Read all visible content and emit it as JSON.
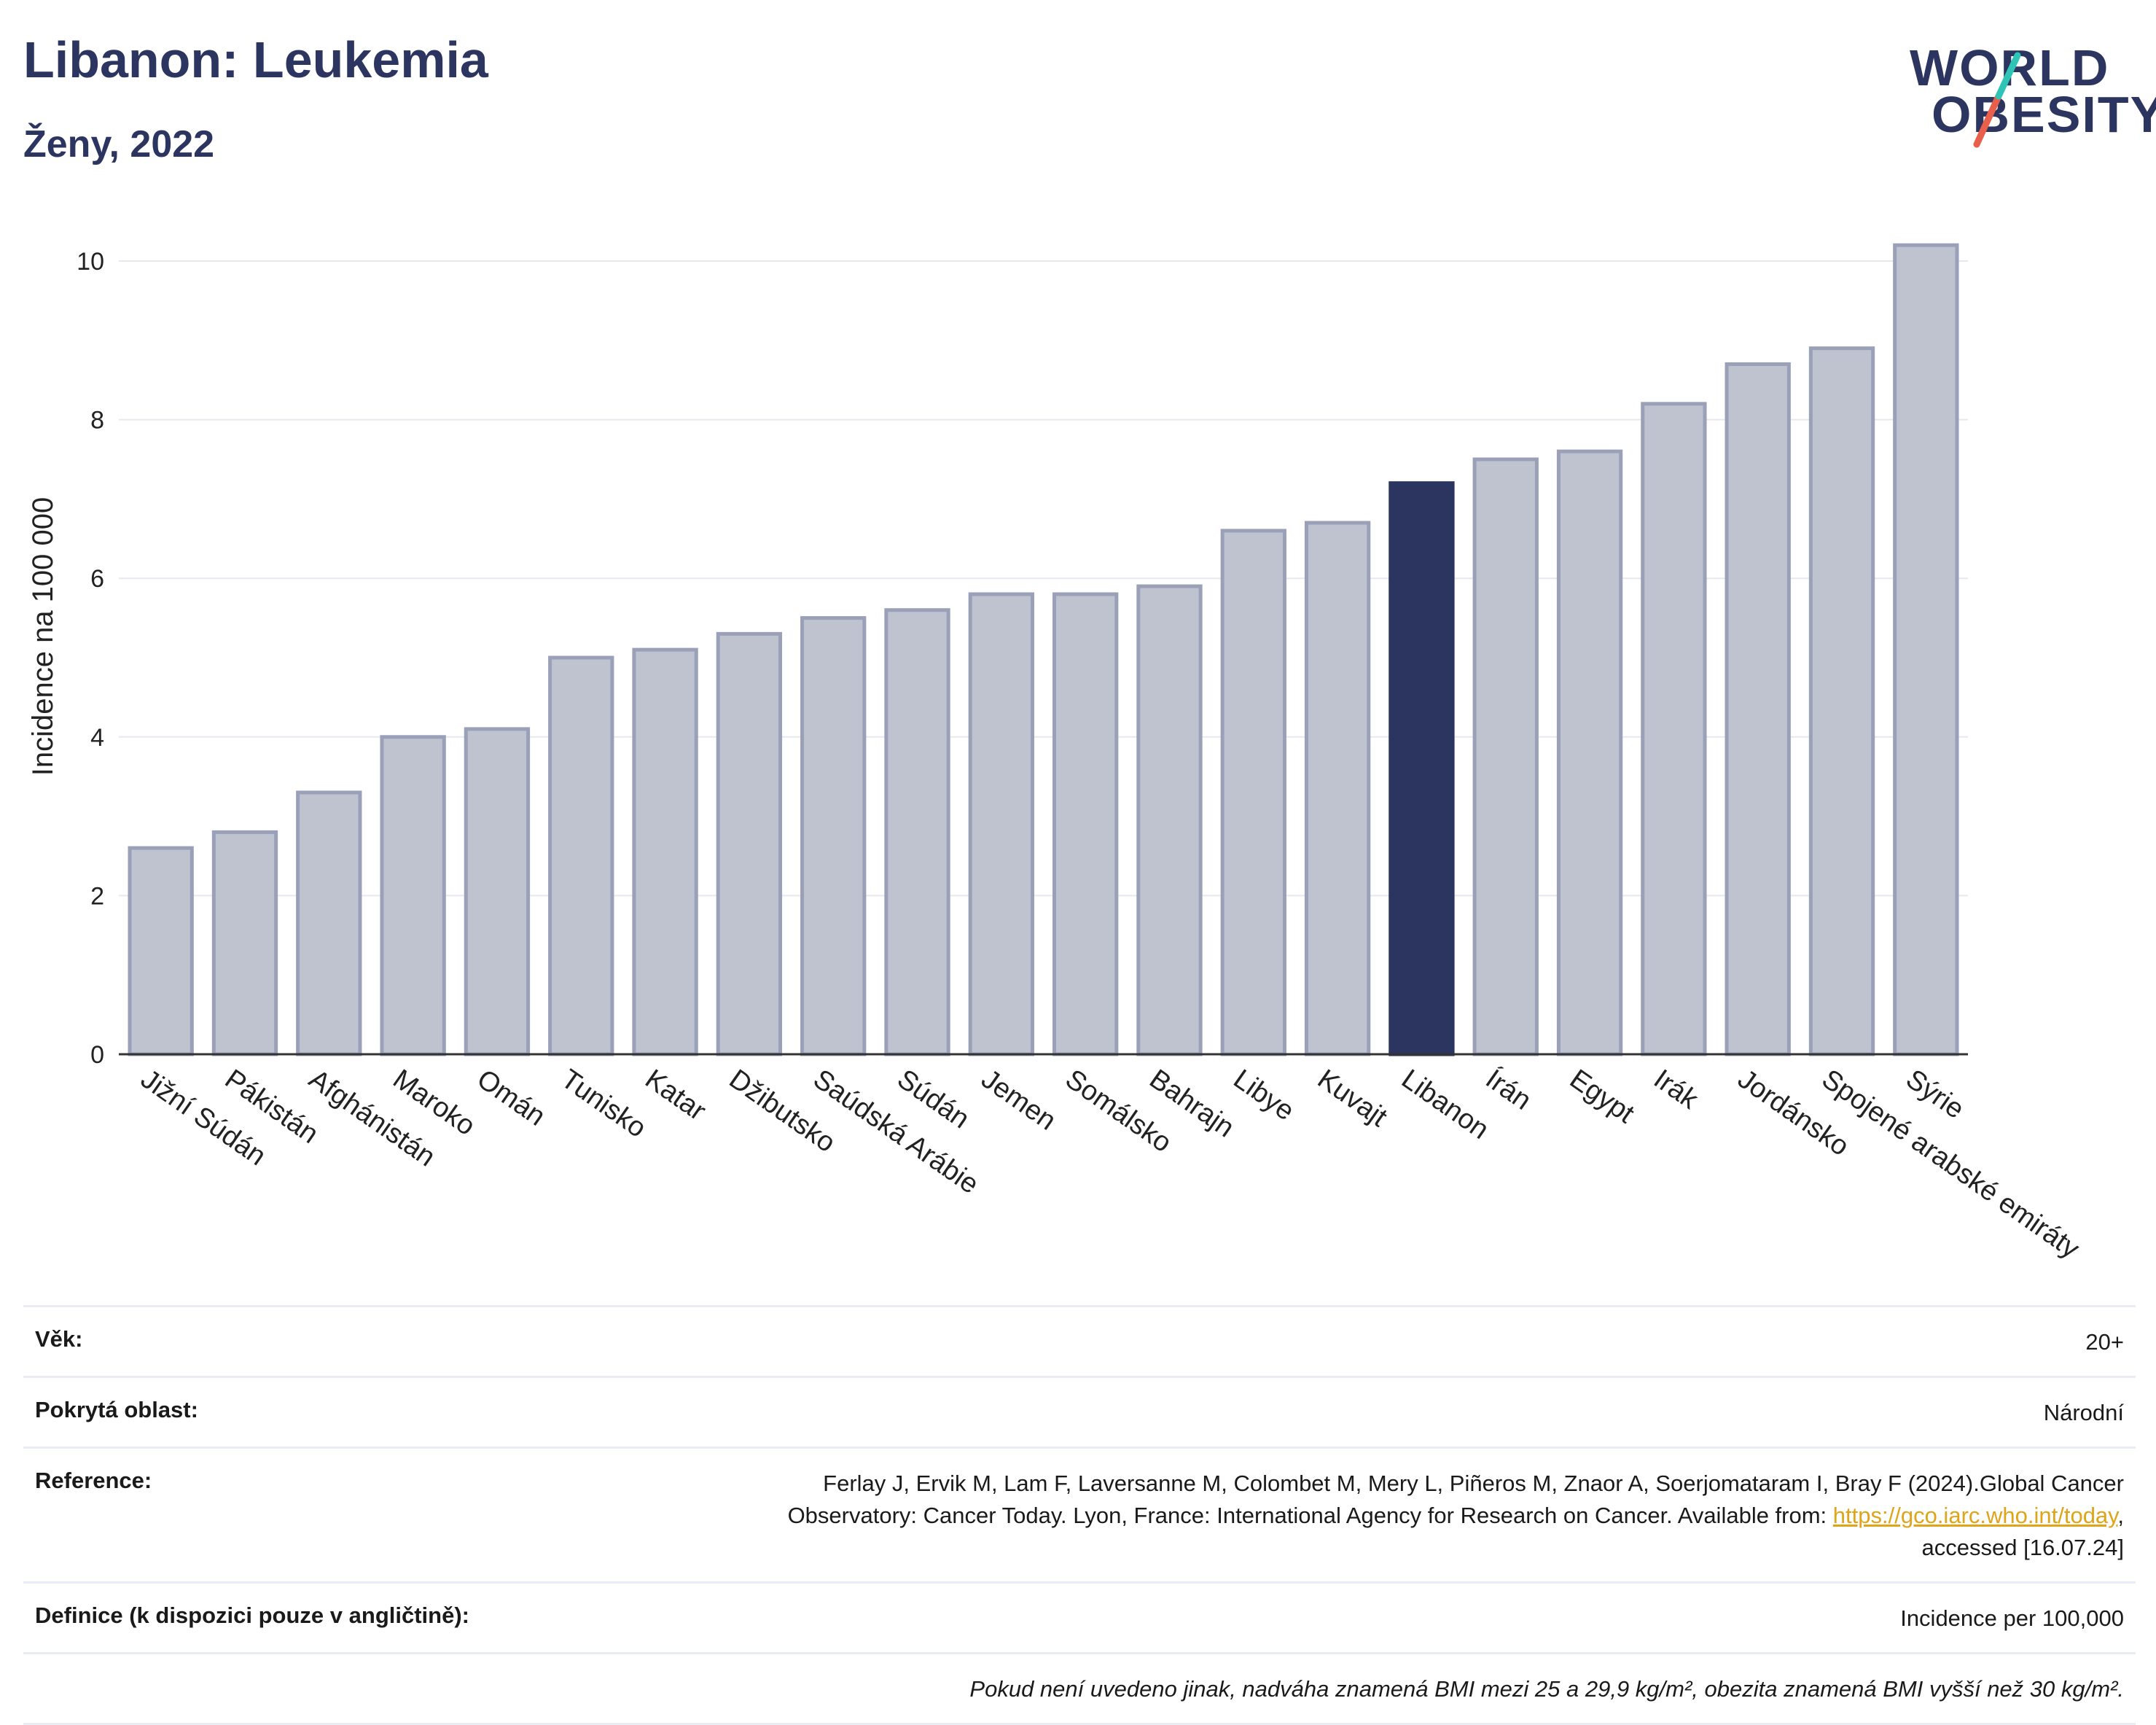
{
  "header": {
    "title": "Libanon: Leukemia",
    "subtitle": "Ženy, 2022",
    "logo_line1": "WORLD",
    "logo_line2": "OBESITY"
  },
  "colors": {
    "bar_default": "#bfc3d0",
    "bar_default_border": "#9aa0b8",
    "bar_highlight": "#2b3560",
    "title": "#2b3560",
    "link": "#e0a419",
    "logo_slash_top": "#2ec4b6",
    "logo_slash_bottom": "#e8604c"
  },
  "chart_data": {
    "type": "bar",
    "title": "Libanon: Leukemia",
    "subtitle": "Ženy, 2022",
    "xlabel": "",
    "ylabel": "Incidence na 100 000",
    "ylim": [
      0,
      10.5
    ],
    "yticks": [
      0,
      2,
      4,
      6,
      8,
      10
    ],
    "grid": true,
    "highlight": "Libanon",
    "categories": [
      "Jižní Súdán",
      "Pákistán",
      "Afghánistán",
      "Maroko",
      "Omán",
      "Tunisko",
      "Katar",
      "Džibutsko",
      "Saúdská Arábie",
      "Súdán",
      "Jemen",
      "Somálsko",
      "Bahrajn",
      "Libye",
      "Kuvajt",
      "Libanon",
      "Írán",
      "Egypt",
      "Irák",
      "Jordánsko",
      "Spojené arabské emiráty",
      "Sýrie"
    ],
    "values": [
      2.6,
      2.8,
      3.3,
      4.0,
      4.1,
      5.0,
      5.1,
      5.3,
      5.5,
      5.6,
      5.8,
      5.8,
      5.9,
      6.6,
      6.7,
      7.2,
      7.5,
      7.6,
      8.2,
      8.7,
      8.9,
      10.2
    ]
  },
  "info": {
    "age_label": "Věk:",
    "age_value": "20+",
    "area_label": "Pokrytá oblast:",
    "area_value": "Národní",
    "reference_label": "Reference:",
    "reference_line1": "Ferlay J, Ervik M, Lam F, Laversanne M, Colombet M, Mery L, Piñeros M, Znaor A, Soerjomataram I, Bray F (2024).Global Cancer",
    "reference_line2_pre": "Observatory: Cancer Today. Lyon, France: International Agency for Research on Cancer. Available from: ",
    "reference_link": "https://gco.iarc.who.int/today",
    "reference_line2_post": ",",
    "reference_line3": "accessed [16.07.24]",
    "definition_label": "Definice (k dispozici pouze v angličtině):",
    "definition_value": "Incidence per 100,000",
    "note": "Pokud není uvedeno jinak, nadváha znamená BMI mezi 25 a 29,9 kg/m², obezita znamená BMI vyšší než 30 kg/m²."
  }
}
